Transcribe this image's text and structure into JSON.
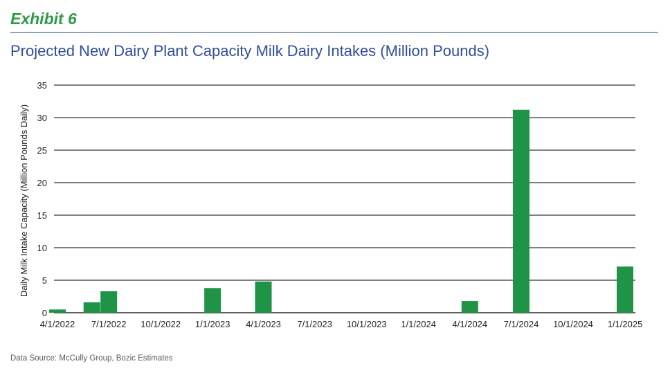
{
  "header": {
    "exhibit": "Exhibit 6",
    "title": "Projected New Dairy Plant Capacity Milk Dairy Intakes (Million Pounds)"
  },
  "footer": {
    "source": "Data Source: McCully Group, Bozic Estimates"
  },
  "chart_data": {
    "type": "bar",
    "title": "Projected New Dairy Plant Capacity Milk Dairy Intakes (Million Pounds)",
    "xlabel": "",
    "ylabel": "Daily Milk Intake Capacity (Million Pounds Daily)",
    "ylim": [
      0,
      35
    ],
    "yticks": [
      0,
      5,
      10,
      15,
      20,
      25,
      30,
      35
    ],
    "xtick_labels": [
      "4/1/2022",
      "7/1/2022",
      "10/1/2022",
      "1/1/2023",
      "4/1/2023",
      "7/1/2023",
      "10/1/2023",
      "1/1/2024",
      "4/1/2024",
      "7/1/2024",
      "10/1/2024",
      "1/1/2025"
    ],
    "x_range": [
      "4/1/2022",
      "1/1/2025"
    ],
    "bar_color": "#1f9447",
    "grid": true,
    "legend": "none",
    "bars": [
      {
        "date": "4/1/2022",
        "value": 0.5
      },
      {
        "date": "6/1/2022",
        "value": 1.6
      },
      {
        "date": "7/1/2022",
        "value": 3.3
      },
      {
        "date": "1/1/2023",
        "value": 3.8
      },
      {
        "date": "4/1/2023",
        "value": 4.8
      },
      {
        "date": "4/1/2024",
        "value": 1.8
      },
      {
        "date": "7/1/2024",
        "value": 31.2
      },
      {
        "date": "1/1/2025",
        "value": 7.1
      }
    ]
  }
}
